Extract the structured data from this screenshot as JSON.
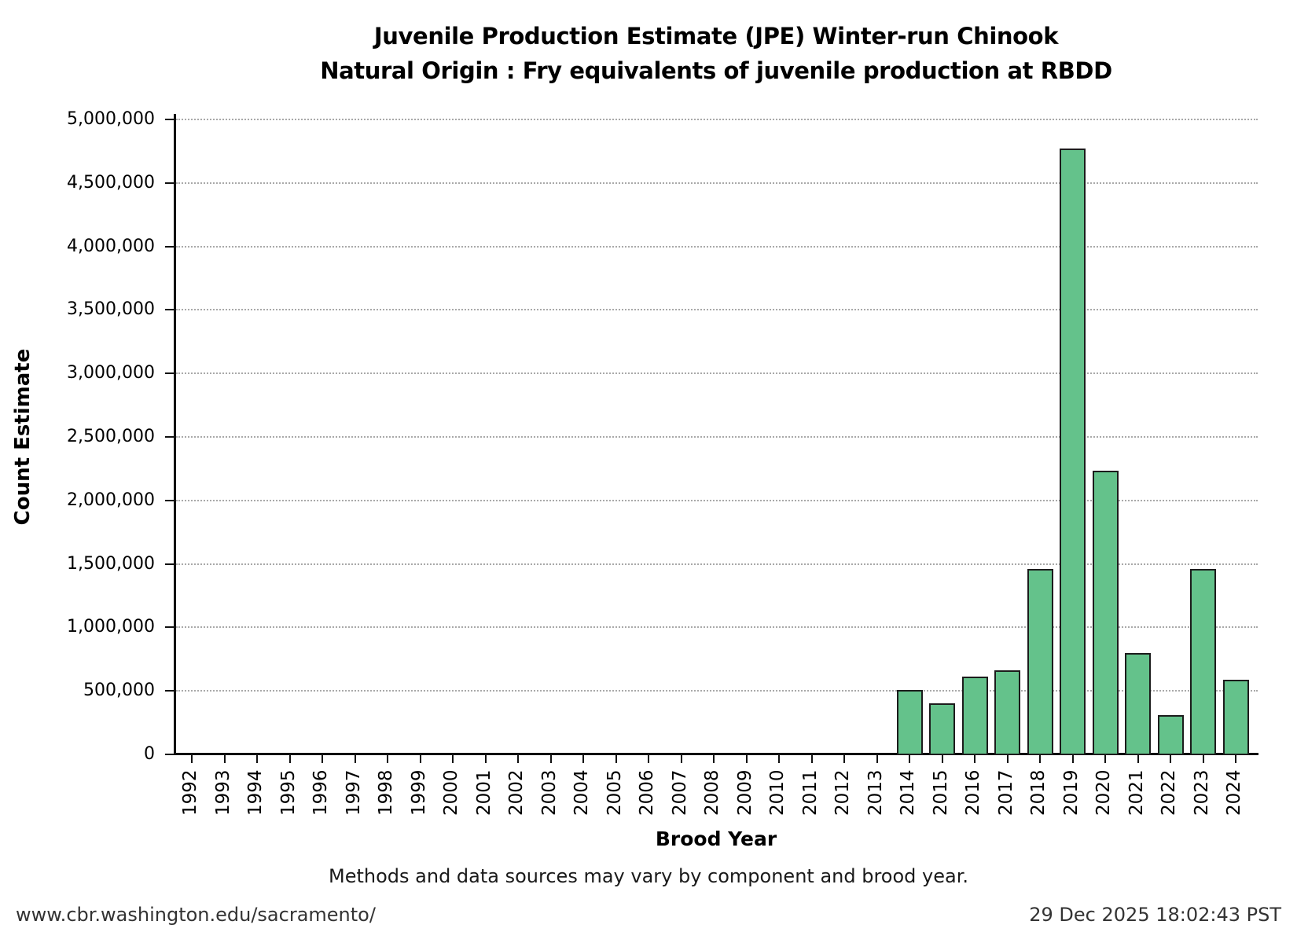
{
  "title": {
    "line1": "Juvenile Production Estimate (JPE) Winter-run Chinook",
    "line2": "Natural Origin : Fry equivalents of juvenile production at RBDD"
  },
  "y_axis": {
    "label": "Count Estimate",
    "tick_labels": [
      "0",
      "500,000",
      "1,000,000",
      "1,500,000",
      "2,000,000",
      "2,500,000",
      "3,000,000",
      "3,500,000",
      "4,000,000",
      "4,500,000",
      "5,000,000"
    ]
  },
  "x_axis": {
    "label": "Brood Year"
  },
  "chart_data": {
    "type": "bar",
    "title": "Juvenile Production Estimate (JPE) Winter-run Chinook — Natural Origin : Fry equivalents of juvenile production at RBDD",
    "xlabel": "Brood Year",
    "ylabel": "Count Estimate",
    "ylim": [
      0,
      5000000
    ],
    "grid": true,
    "grid_interval": 500000,
    "legend": "none",
    "categories": [
      "1992",
      "1993",
      "1994",
      "1995",
      "1996",
      "1997",
      "1998",
      "1999",
      "2000",
      "2001",
      "2002",
      "2003",
      "2004",
      "2005",
      "2006",
      "2007",
      "2008",
      "2009",
      "2010",
      "2011",
      "2012",
      "2013",
      "2014",
      "2015",
      "2016",
      "2017",
      "2018",
      "2019",
      "2020",
      "2021",
      "2022",
      "2023",
      "2024"
    ],
    "values": [
      0,
      0,
      0,
      0,
      0,
      0,
      0,
      0,
      0,
      0,
      0,
      0,
      0,
      0,
      0,
      0,
      0,
      0,
      0,
      0,
      0,
      0,
      505000,
      405000,
      615000,
      665000,
      1460000,
      4770000,
      2235000,
      800000,
      310000,
      1460000,
      585000
    ]
  },
  "caption": "Methods and data sources may vary by component and brood year.",
  "footer": {
    "left": "www.cbr.washington.edu/sacramento/",
    "right": "29 Dec 2025 18:02:43 PST"
  },
  "colors": {
    "bar_fill": "#64c28b",
    "bar_edge": "#1c1c1c",
    "grid": "#a9a9a9",
    "axis": "#111111",
    "footer_text": "#333333"
  }
}
